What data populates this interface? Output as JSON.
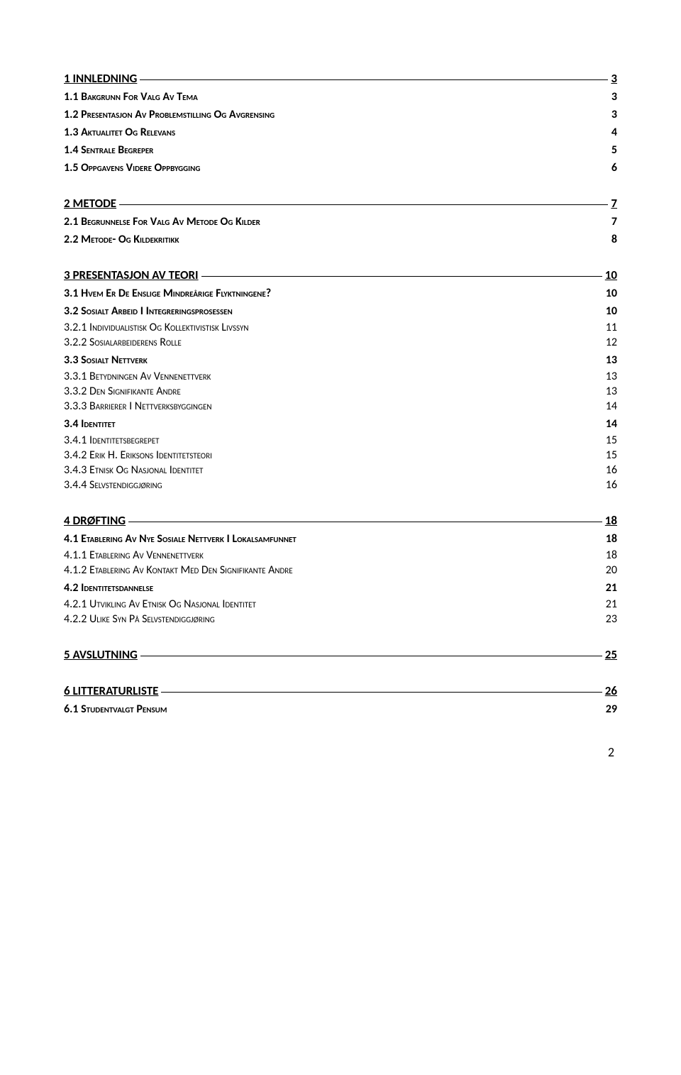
{
  "toc": [
    {
      "level": 1,
      "num": "1",
      "title": "INNLEDNING",
      "page": "3"
    },
    {
      "level": 2,
      "num": "1.1",
      "title": "BAKGRUNN FOR VALG AV TEMA",
      "page": "3"
    },
    {
      "level": 2,
      "num": "1.2",
      "title": "PRESENTASJON AV PROBLEMSTILLING OG AVGRENSING",
      "page": "3"
    },
    {
      "level": 2,
      "num": "1.3",
      "title": "AKTUALITET OG RELEVANS",
      "page": "4"
    },
    {
      "level": 2,
      "num": "1.4",
      "title": "SENTRALE BEGREPER",
      "page": "5"
    },
    {
      "level": 2,
      "num": "1.5",
      "title": "OPPGAVENS VIDERE OPPBYGGING",
      "page": "6"
    },
    {
      "level": 1,
      "num": "2",
      "title": "METODE",
      "page": "7"
    },
    {
      "level": 2,
      "num": "2.1",
      "title": "BEGRUNNELSE FOR VALG AV METODE OG KILDER",
      "page": "7"
    },
    {
      "level": 2,
      "num": "2.2",
      "title": "METODE- OG KILDEKRITIKK",
      "page": "8"
    },
    {
      "level": 1,
      "num": "3",
      "title": "PRESENTASJON AV TEORI",
      "page": "10"
    },
    {
      "level": 2,
      "num": "3.1",
      "title": "HVEM ER DE ENSLIGE MINDREÅRIGE FLYKTNINGENE?",
      "page": "10"
    },
    {
      "level": 2,
      "num": "3.2",
      "title": "SOSIALT ARBEID I INTEGRERINGSPROSESSEN",
      "page": "10"
    },
    {
      "level": 3,
      "num": "3.2.1",
      "title": "INDIVIDUALISTISK OG KOLLEKTIVISTISK LIVSSYN",
      "page": "11"
    },
    {
      "level": 3,
      "num": "3.2.2",
      "title": "SOSIALARBEIDERENS ROLLE",
      "page": "12"
    },
    {
      "level": 2,
      "num": "3.3",
      "title": "SOSIALT NETTVERK",
      "page": "13"
    },
    {
      "level": 3,
      "num": "3.3.1",
      "title": "BETYDNINGEN AV VENNENETTVERK",
      "page": "13"
    },
    {
      "level": 3,
      "num": "3.3.2",
      "title": "DEN SIGNIFIKANTE ANDRE",
      "page": "13"
    },
    {
      "level": 3,
      "num": "3.3.3",
      "title": "BARRIERER I NETTVERKSBYGGINGEN",
      "page": "14"
    },
    {
      "level": 2,
      "num": "3.4",
      "title": "IDENTITET",
      "page": "14"
    },
    {
      "level": 3,
      "num": "3.4.1",
      "title": "IDENTITETSBEGREPET",
      "page": "15"
    },
    {
      "level": 3,
      "num": "3.4.2",
      "title": "ERIK H. ERIKSONS IDENTITETSTEORI",
      "page": "15"
    },
    {
      "level": 3,
      "num": "3.4.3",
      "title": "ETNISK OG NASJONAL IDENTITET",
      "page": "16"
    },
    {
      "level": 3,
      "num": "3.4.4",
      "title": "SELVSTENDIGGJØRING",
      "page": "16"
    },
    {
      "level": 1,
      "num": "4",
      "title": "DRØFTING",
      "page": "18"
    },
    {
      "level": 2,
      "num": "4.1",
      "title": "ETABLERING AV NYE SOSIALE NETTVERK I LOKALSAMFUNNET",
      "page": "18"
    },
    {
      "level": 3,
      "num": "4.1.1",
      "title": "ETABLERING AV VENNENETTVERK",
      "page": "18"
    },
    {
      "level": 3,
      "num": "4.1.2",
      "title": "ETABLERING AV KONTAKT MED DEN SIGNIFIKANTE ANDRE",
      "page": "20"
    },
    {
      "level": 2,
      "num": "4.2",
      "title": "IDENTITETSDANNELSE",
      "page": "21"
    },
    {
      "level": 3,
      "num": "4.2.1",
      "title": "UTVIKLING AV ETNISK OG NASJONAL IDENTITET",
      "page": "21"
    },
    {
      "level": 3,
      "num": "4.2.2",
      "title": "ULIKE SYN PÅ SELVSTENDIGGJØRING",
      "page": "23"
    },
    {
      "level": 1,
      "num": "5",
      "title": "AVSLUTNING",
      "page": "25"
    },
    {
      "level": 1,
      "num": "6",
      "title": "LITTERATURLISTE",
      "page": "26"
    },
    {
      "level": 2,
      "num": "6.1",
      "title": "STUDENTVALGT PENSUM",
      "page": "29"
    }
  ],
  "footer_page_number": "2",
  "colors": {
    "text": "#000000",
    "background": "#ffffff"
  }
}
